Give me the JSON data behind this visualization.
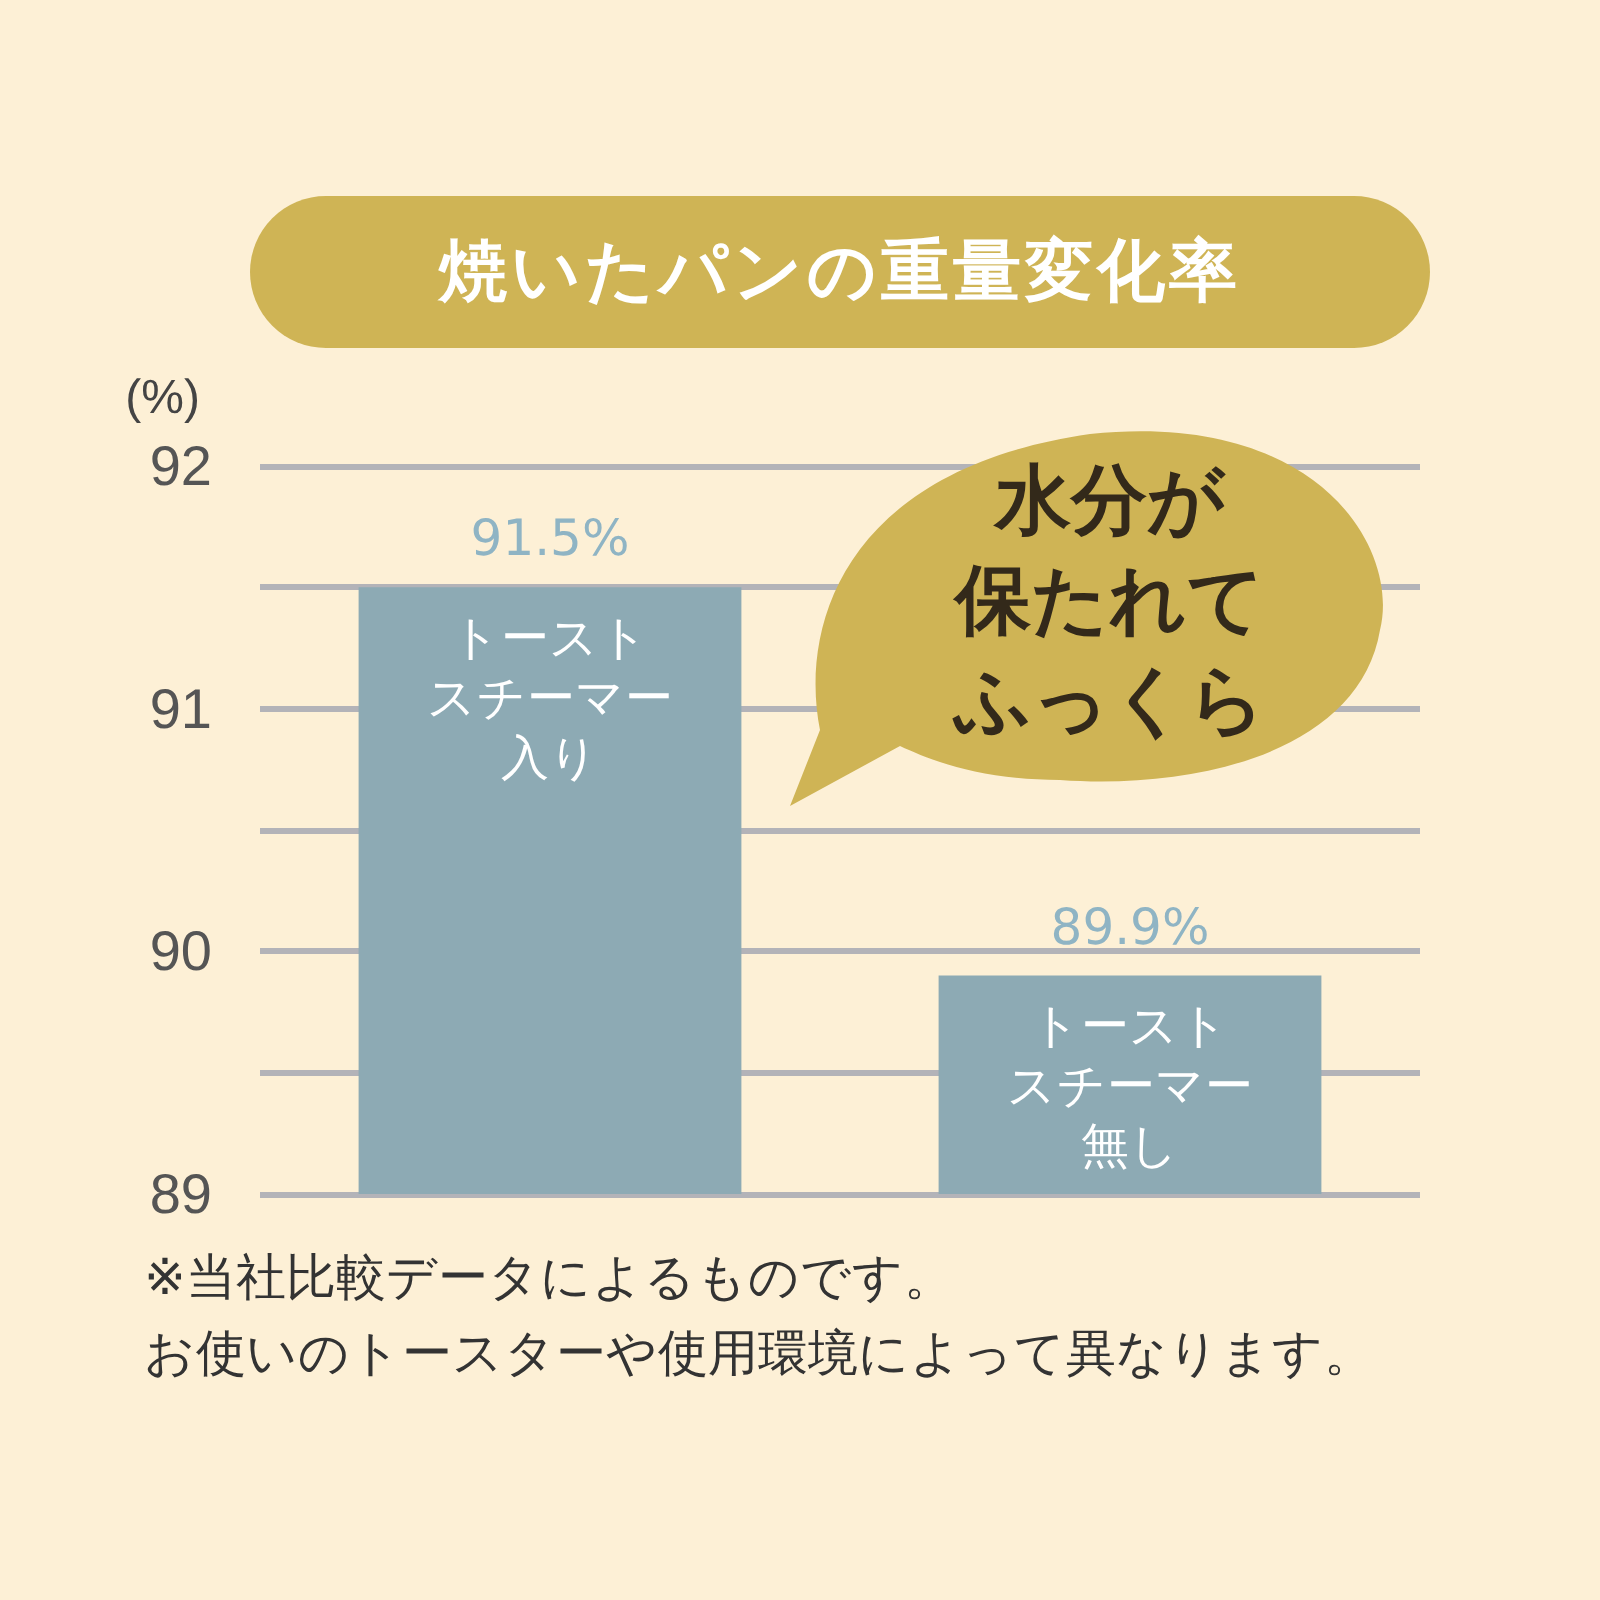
{
  "chart_data": {
    "type": "bar",
    "title": "焼いたパンの重量変化率",
    "ylabel": "(%)",
    "categories": [
      "トーストスチーマー入り",
      "トーストスチーマー無し"
    ],
    "values": [
      91.5,
      89.9
    ],
    "value_labels": [
      "91.5%",
      "89.9%"
    ],
    "color": "#8daab4",
    "ylim": [
      89,
      92
    ],
    "yticks": [
      89,
      {
        "value": 89.5,
        "label": null
      },
      90,
      {
        "value": 90.5,
        "label": null
      },
      91,
      {
        "value": 91.5,
        "label": null
      },
      92
    ],
    "grid": "y",
    "annotations": [
      "水分が",
      "保たれて",
      "ふっくら",
      "※当社比較データによるものです。",
      "お使いのトースターや使用環境によって異なります。"
    ]
  }
}
